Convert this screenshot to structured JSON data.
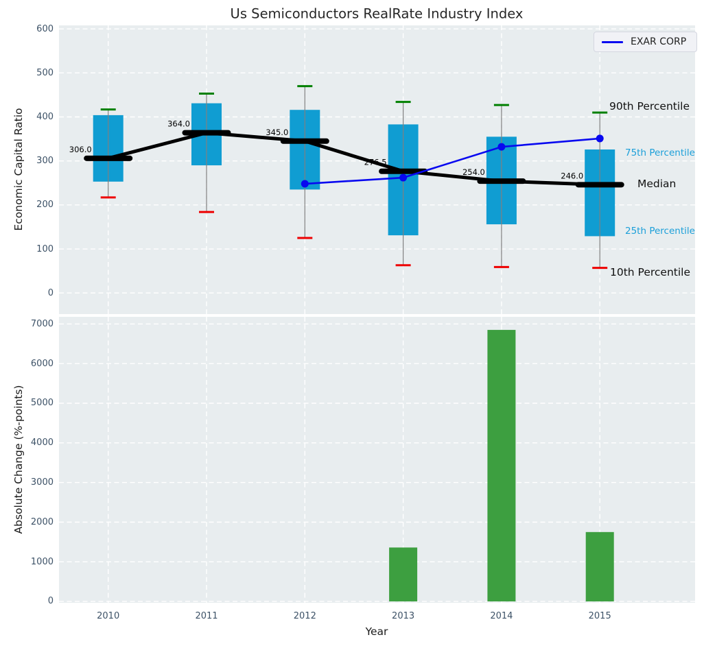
{
  "figure": {
    "title": "Us Semiconductors RealRate Industry Index",
    "legend": {
      "label": "EXAR CORP"
    }
  },
  "colors": {
    "plot_bg": "#e8edef",
    "grid": "#ffffff",
    "box_fill": "#109dd2",
    "whisker": "#808080",
    "cap_90": "#008000",
    "cap_10": "#ee0000",
    "median": "#000000",
    "exar_line": "#0808f0",
    "bar_fill": "#3d9f40",
    "tick_label": "#3c5166",
    "percentile_blue": "#1b9fd9",
    "annotation_black": "#111111"
  },
  "chart_data": [
    {
      "type": "boxplot",
      "name": "economic-capital-ratio-percentile-index",
      "ylabel": "Economic Capital Ratio",
      "ylim": [
        -48,
        608
      ],
      "yticks": [
        0,
        100,
        200,
        300,
        400,
        500,
        600
      ],
      "categories": [
        "2010",
        "2011",
        "2012",
        "2013",
        "2014",
        "2015"
      ],
      "grid": "white dashed, horizontal and vertical",
      "legend_position": "upper right",
      "series": [
        {
          "name": "10th Percentile",
          "role": "whisker-low-cap",
          "values": [
            217,
            184,
            125,
            63,
            59,
            57
          ]
        },
        {
          "name": "25th Percentile",
          "role": "box-bottom",
          "values": [
            253,
            290,
            235,
            131,
            156,
            129
          ]
        },
        {
          "name": "Median",
          "role": "median-line",
          "values": [
            306.0,
            364.0,
            345.0,
            276.5,
            254.0,
            246.0
          ]
        },
        {
          "name": "75th Percentile",
          "role": "box-top",
          "values": [
            404,
            431,
            416,
            383,
            355,
            326
          ]
        },
        {
          "name": "90th Percentile",
          "role": "whisker-high-cap",
          "values": [
            417,
            453,
            470,
            434,
            427,
            410
          ]
        },
        {
          "name": "EXAR CORP",
          "role": "line-with-markers",
          "categories": [
            "2012",
            "2013",
            "2014",
            "2015"
          ],
          "values": [
            248,
            262,
            332,
            351
          ]
        }
      ],
      "median_labels": [
        "306.0",
        "364.0",
        "345.0",
        "276.5",
        "254.0",
        "246.0"
      ],
      "right_annotations": [
        {
          "label": "90th Percentile",
          "value": 424,
          "style": "black"
        },
        {
          "label": "75th Percentile",
          "value": 317,
          "style": "blue"
        },
        {
          "label": "Median",
          "value": 248,
          "style": "black"
        },
        {
          "label": "25th Percentile",
          "value": 140,
          "style": "blue"
        },
        {
          "label": "10th Percentile",
          "value": 46,
          "style": "black"
        }
      ]
    },
    {
      "type": "bar",
      "name": "absolute-change-bars",
      "xlabel": "Year",
      "ylabel": "Absolute Change (%-points)",
      "ylim": [
        -35,
        7180
      ],
      "yticks": [
        0,
        1000,
        2000,
        3000,
        4000,
        5000,
        6000,
        7000
      ],
      "categories": [
        "2010",
        "2011",
        "2012",
        "2013",
        "2014",
        "2015"
      ],
      "values": [
        null,
        null,
        null,
        1360,
        6850,
        1750
      ]
    }
  ]
}
